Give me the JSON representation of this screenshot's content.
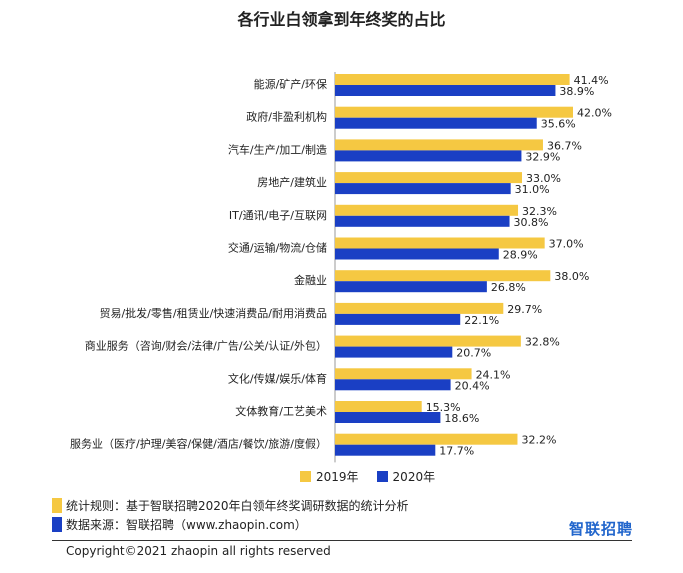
{
  "chart_data": {
    "type": "bar",
    "orientation": "horizontal",
    "title": "各行业白领拿到年终奖的占比",
    "categories": [
      "能源/矿产/环保",
      "政府/非盈利机构",
      "汽车/生产/加工/制造",
      "房地产/建筑业",
      "IT/通讯/电子/互联网",
      "交通/运输/物流/仓储",
      "金融业",
      "贸易/批发/零售/租赁业/快速消费品/耐用消费品",
      "商业服务（咨询/财会/法律/广告/公关/认证/外包）",
      "文化/传媒/娱乐/体育",
      "文体教育/工艺美术",
      "服务业（医疗/护理/美容/保健/酒店/餐饮/旅游/度假）"
    ],
    "series": [
      {
        "name": "2019年",
        "color": "#f5c842",
        "values": [
          41.4,
          42.0,
          36.7,
          33.0,
          32.3,
          37.0,
          38.0,
          29.7,
          32.8,
          24.1,
          15.3,
          32.2
        ],
        "labels": [
          "41.4%",
          "42.0%",
          "36.7%",
          "33.0%",
          "32.3%",
          "37.0%",
          "38.0%",
          "29.7%",
          "32.8%",
          "24.1%",
          "15.3%",
          "32.2%"
        ]
      },
      {
        "name": "2020年",
        "color": "#1a3fc4",
        "values": [
          38.9,
          35.6,
          32.9,
          31.0,
          30.8,
          28.9,
          26.8,
          22.1,
          20.7,
          20.4,
          18.6,
          17.7
        ],
        "labels": [
          "38.9%",
          "35.6%",
          "32.9%",
          "31.0%",
          "30.8%",
          "28.9%",
          "26.8%",
          "22.1%",
          "20.7%",
          "20.4%",
          "18.6%",
          "17.7%"
        ]
      }
    ],
    "xlim": [
      0,
      45
    ],
    "legend_position": "bottom",
    "grid": false
  },
  "notes": {
    "method": "统计规则：基于智联招聘2020年白领年终奖调研数据的统计分析",
    "source": "数据来源：智联招聘（www.zhaopin.com）"
  },
  "brand": "智联招聘",
  "copyright": "Copyright©2021 zhaopin all rights reserved",
  "colors": {
    "yellow": "#f5c842",
    "blue": "#1a3fc4",
    "brand": "#2266cc"
  }
}
